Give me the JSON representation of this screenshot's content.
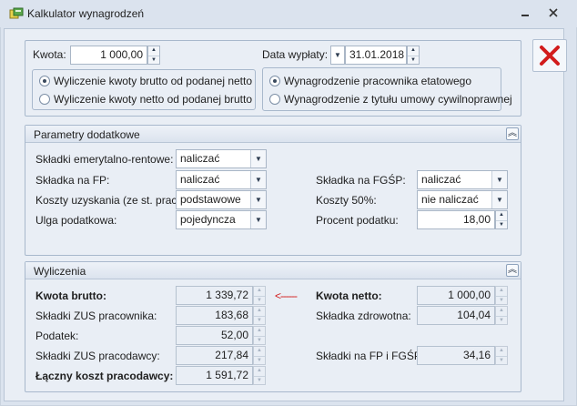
{
  "window": {
    "title": "Kalkulator wynagrodzeń"
  },
  "top": {
    "kwota_label": "Kwota:",
    "kwota_value": "1 000,00",
    "data_label": "Data wypłaty:",
    "data_value": "31.01.2018",
    "mode_options": [
      {
        "label": "Wyliczenie kwoty brutto od podanej netto",
        "selected": true
      },
      {
        "label": "Wyliczenie kwoty netto od podanej brutto",
        "selected": false
      }
    ],
    "type_options": [
      {
        "label": "Wynagrodzenie pracownika etatowego",
        "selected": true
      },
      {
        "label": "Wynagrodzenie z tytułu umowy cywilnoprawnej",
        "selected": false
      }
    ]
  },
  "params": {
    "title": "Parametry dodatkowe",
    "emeryt_label": "Składki emerytalno-rentowe:",
    "emeryt_value": "naliczać",
    "fp_label": "Składka na FP:",
    "fp_value": "naliczać",
    "koszty_label": "Koszty uzyskania (ze st. pracy):",
    "koszty_value": "podstawowe",
    "ulga_label": "Ulga podatkowa:",
    "ulga_value": "pojedyncza",
    "fgsp_label": "Składka na FGŚP:",
    "fgsp_value": "naliczać",
    "koszty50_label": "Koszty 50%:",
    "koszty50_value": "nie naliczać",
    "procent_label": "Procent podatku:",
    "procent_value": "18,00"
  },
  "results": {
    "title": "Wyliczenia",
    "brutto_label": "Kwota brutto:",
    "brutto_value": "1 339,72",
    "arrow_glyph": "<------",
    "netto_label": "Kwota netto:",
    "netto_value": "1 000,00",
    "zus_prac_label": "Składki ZUS pracownika:",
    "zus_prac_value": "183,68",
    "zdrow_label": "Składka zdrowotna:",
    "zdrow_value": "104,04",
    "podatek_label": "Podatek:",
    "podatek_value": "52,00",
    "zus_pracod_label": "Składki ZUS pracodawcy:",
    "zus_pracod_value": "217,84",
    "fp_fgsp_label": "Składki na FP i FGŚP:",
    "fp_fgsp_value": "34,16",
    "laczny_label": "Łączny koszt pracodawcy:",
    "laczny_value": "1 591,72"
  },
  "colors": {
    "accent_close": "#d21c1c",
    "arrow": "#d21c1c"
  }
}
